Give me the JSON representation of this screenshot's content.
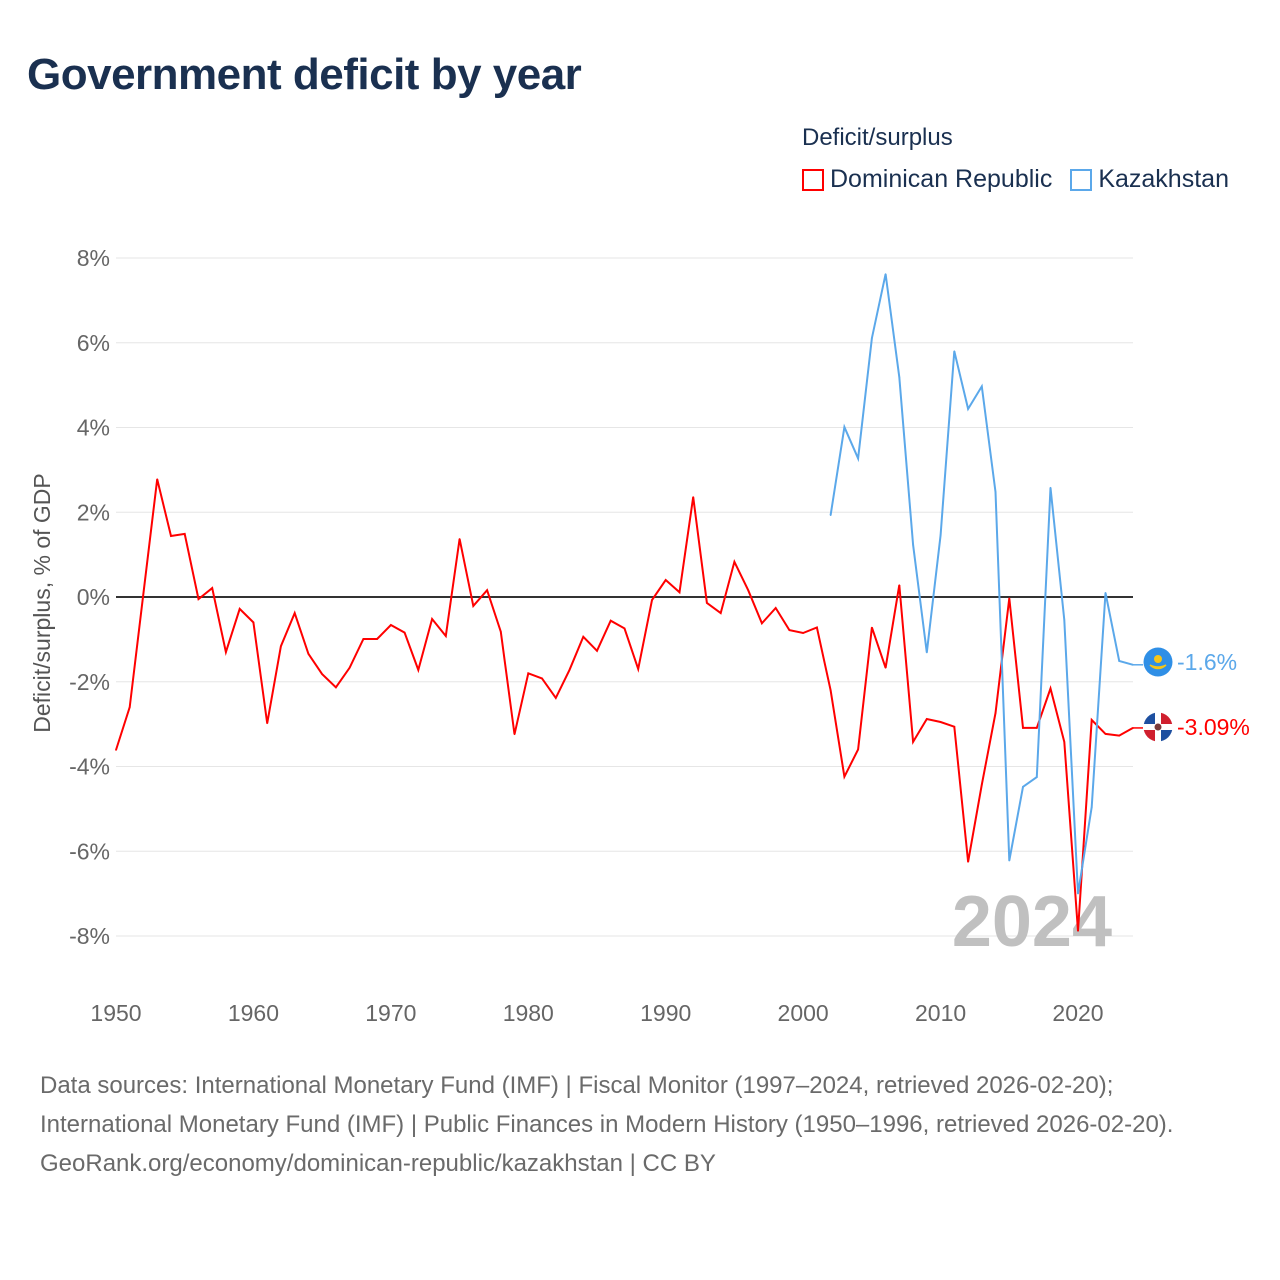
{
  "title": "Government deficit by year",
  "legend": {
    "title": "Deficit/surplus",
    "items": [
      {
        "name": "Dominican Republic",
        "color": "#ff0000"
      },
      {
        "name": "Kazakhstan",
        "color": "#5ba8ea"
      }
    ]
  },
  "year_watermark": "2024",
  "footer": {
    "sources": "Data sources: International Monetary Fund (IMF) | Fiscal Monitor (1997–2024, retrieved 2026-02-20); International Monetary Fund (IMF) | Public Finances in Modern History (1950–1996, retrieved 2026-02-20).",
    "credit": "GeoRank.org/economy/dominican-republic/kazakhstan | CC BY"
  },
  "chart_data": {
    "type": "line",
    "title": "Government deficit by year",
    "xlabel": "",
    "ylabel": "Deficit/surplus, % of GDP",
    "xlim": [
      1950,
      2024
    ],
    "ylim": [
      -8,
      8
    ],
    "x_ticks": [
      "1950",
      "1960",
      "1970",
      "1980",
      "1990",
      "2000",
      "2010",
      "2020"
    ],
    "y_ticks": [
      "8%",
      "6%",
      "4%",
      "2%",
      "0%",
      "-2%",
      "-4%",
      "-6%",
      "-8%"
    ],
    "grid": true,
    "legend_position": "top-right",
    "series": [
      {
        "name": "Dominican Republic",
        "color": "#ff0000",
        "end_label": "-3.09%",
        "start_year": 1950,
        "values": [
          -3.61,
          -2.6,
          0.1,
          2.78,
          1.44,
          1.49,
          -0.05,
          0.21,
          -1.3,
          -0.28,
          -0.6,
          -2.98,
          -1.16,
          -0.38,
          -1.34,
          -1.82,
          -2.13,
          -1.67,
          -0.99,
          -0.99,
          -0.66,
          -0.84,
          -1.72,
          -0.52,
          -0.92,
          1.37,
          -0.21,
          0.16,
          -0.82,
          -3.24,
          -1.8,
          -1.92,
          -2.38,
          -1.72,
          -0.94,
          -1.27,
          -0.56,
          -0.74,
          -1.7,
          -0.07,
          0.4,
          0.11,
          2.36,
          -0.14,
          -0.38,
          0.83,
          0.16,
          -0.62,
          -0.26,
          -0.78,
          -0.85,
          -0.72,
          -2.2,
          -4.24,
          -3.6,
          -0.72,
          -1.67,
          0.28,
          -3.42,
          -2.88,
          -2.95,
          -3.06,
          -6.25,
          -4.43,
          -2.74,
          -0.03,
          -3.09,
          -3.09,
          -2.16,
          -3.42,
          -7.88,
          -2.9,
          -3.23,
          -3.27,
          -3.09
        ]
      },
      {
        "name": "Kazakhstan",
        "color": "#5ba8ea",
        "end_label": "-1.6%",
        "start_year": 2002,
        "values": [
          1.93,
          4.01,
          3.27,
          6.11,
          7.62,
          5.19,
          1.23,
          -1.31,
          1.46,
          5.8,
          4.44,
          4.97,
          2.48,
          -6.22,
          -4.48,
          -4.25,
          2.58,
          -0.54,
          -7.0,
          -4.96,
          0.1,
          -1.51,
          -1.6
        ]
      }
    ]
  }
}
